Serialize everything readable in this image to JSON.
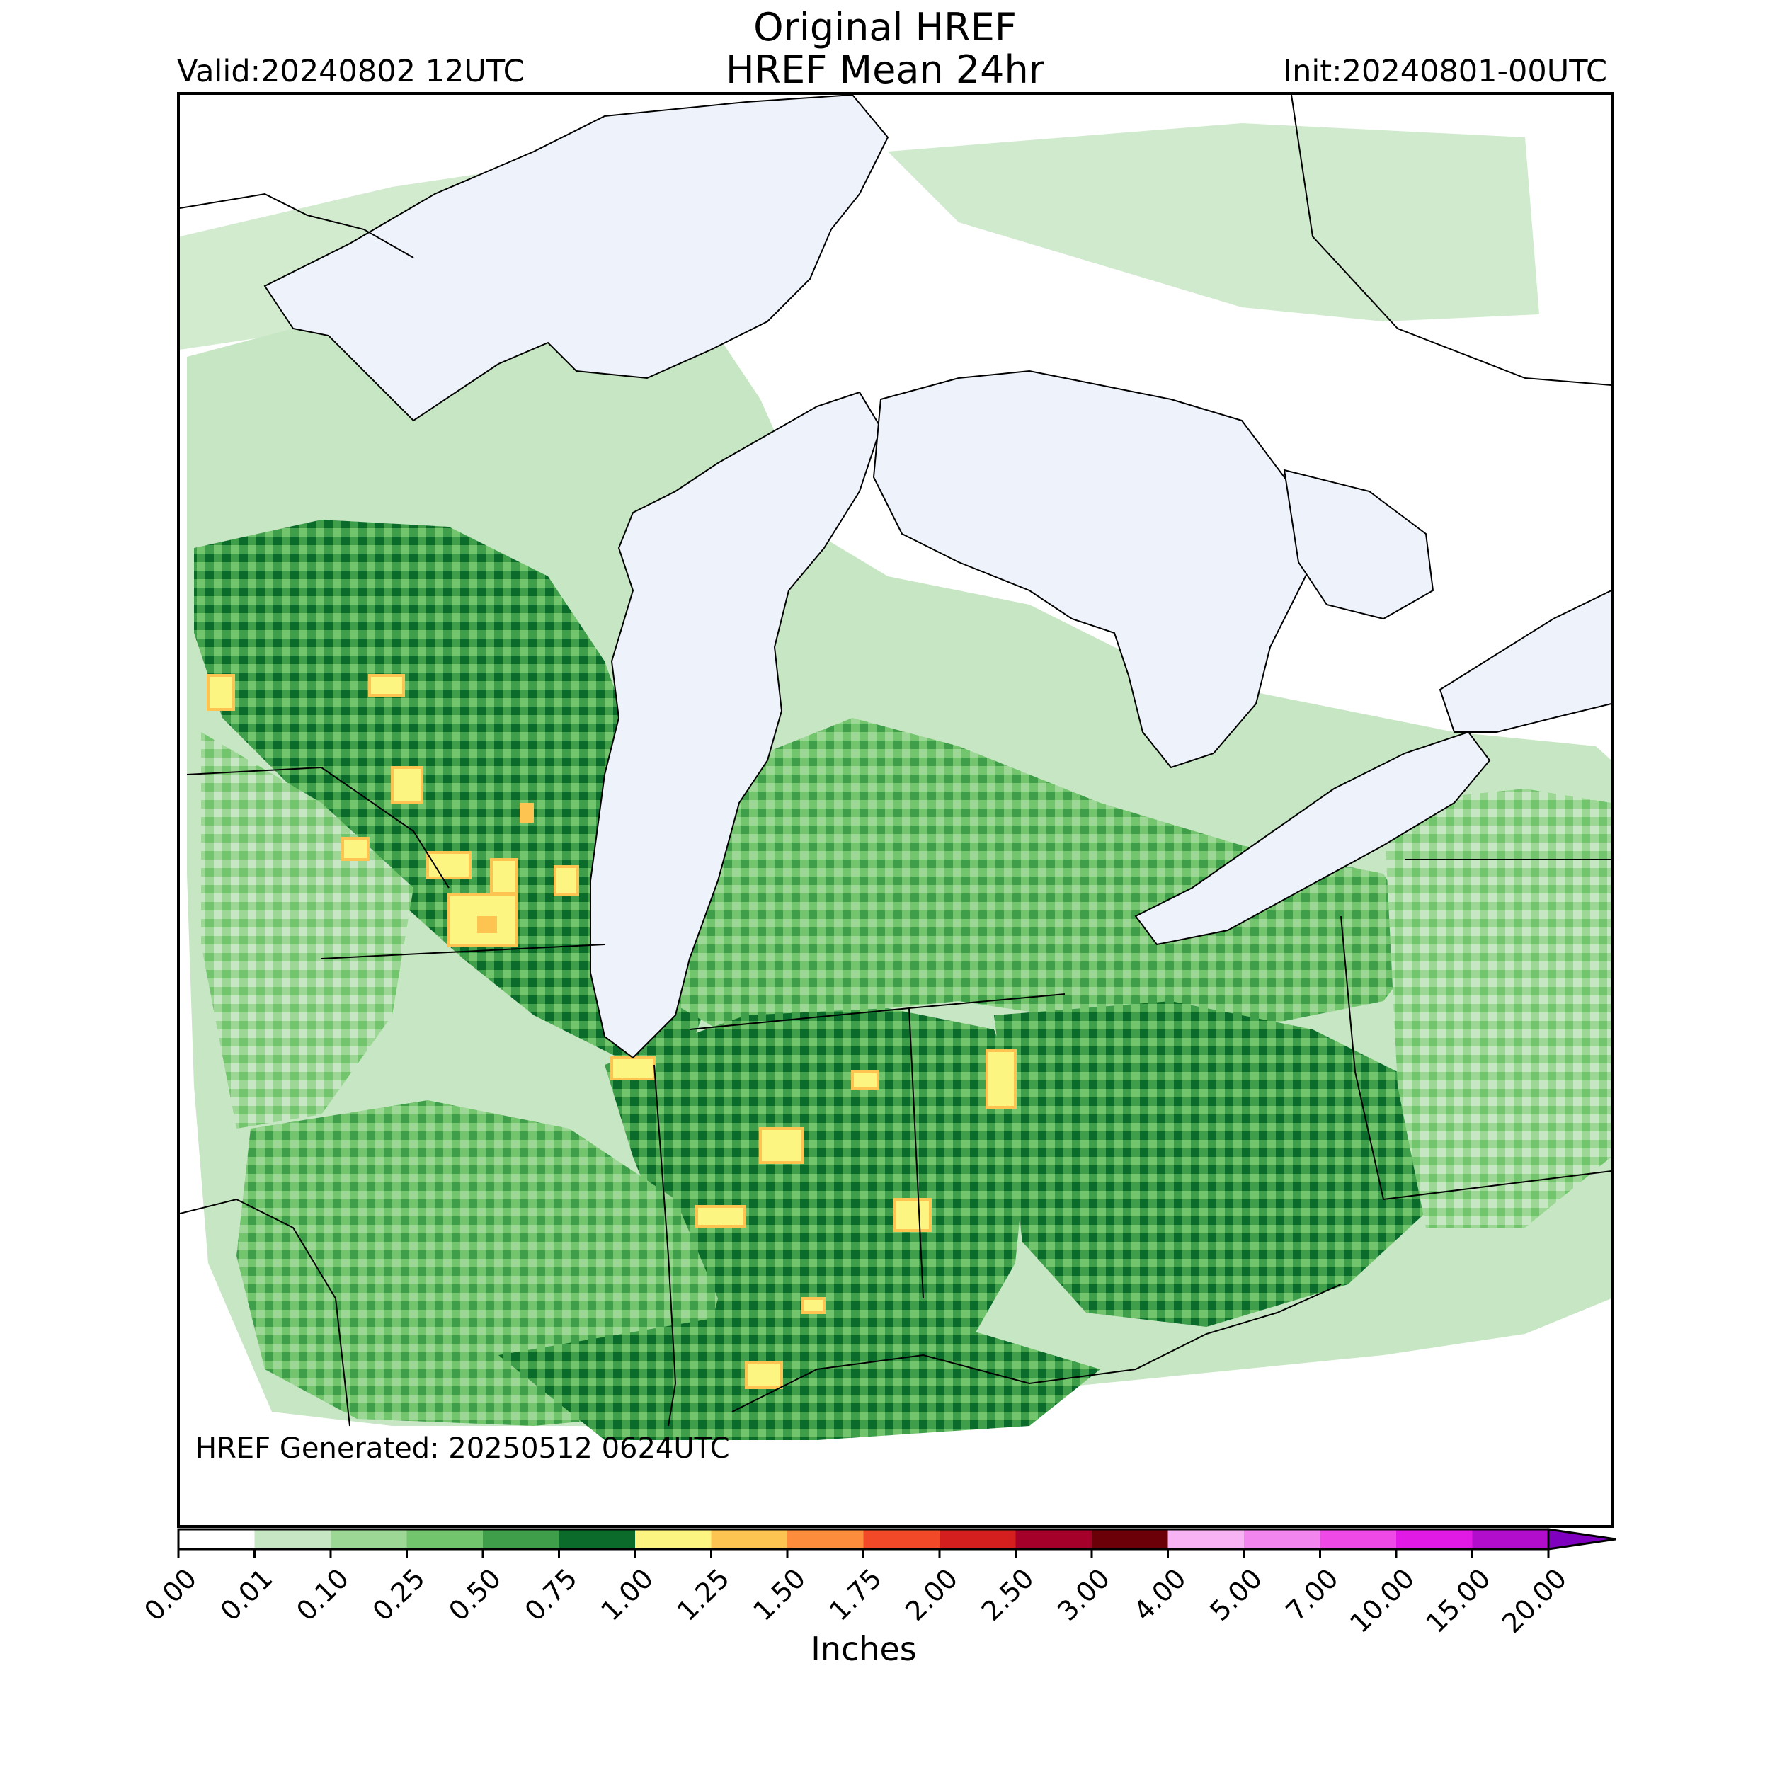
{
  "title": {
    "line1": "Original HREF",
    "line2": "HREF Mean 24hr"
  },
  "valid_label": "Valid:20240802 12UTC",
  "init_label": "Init:20240801-00UTC",
  "generated_label": "HREF Generated: 20250512 0624UTC",
  "colorbar": {
    "label": "Inches",
    "ticks": [
      "0.00",
      "0.01",
      "0.10",
      "0.25",
      "0.50",
      "0.75",
      "1.00",
      "1.25",
      "1.50",
      "1.75",
      "2.00",
      "2.50",
      "3.00",
      "4.00",
      "5.00",
      "7.00",
      "10.00",
      "15.00",
      "20.00"
    ],
    "colors": [
      "#ffffff",
      "#c7e6c3",
      "#9cd796",
      "#72c46d",
      "#3f9e4a",
      "#0a6b2a",
      "#fdf582",
      "#fdc451",
      "#fd8d3c",
      "#f24a28",
      "#d51f1f",
      "#a5002a",
      "#6b0009",
      "#f7b3f3",
      "#f386ee",
      "#ef4ae8",
      "#e21ae6",
      "#b20ccd",
      "#7f00bf"
    ],
    "extend": "max"
  },
  "map": {
    "lake_color": "#eef3fb",
    "boundary_color": "#000000"
  },
  "precip_regions": [
    {
      "name": "wisconsin-minnesota-band",
      "level": 4
    },
    {
      "name": "lower-michigan",
      "level": 3
    },
    {
      "name": "indiana",
      "level": 4
    },
    {
      "name": "ohio",
      "level": 4
    },
    {
      "name": "illinois-southern",
      "level": 3
    },
    {
      "name": "kentucky-border",
      "level": 4
    },
    {
      "name": "pennsylvania",
      "level": 2
    },
    {
      "name": "ontario-north",
      "level": 2
    }
  ],
  "precip_peaks": [
    {
      "name": "wisconsin-peak",
      "value": 1.0
    },
    {
      "name": "indiana-peak",
      "value": 1.0
    },
    {
      "name": "ohio-peak",
      "value": 1.0
    },
    {
      "name": "southern-illinois-peak",
      "value": 1.0
    }
  ]
}
